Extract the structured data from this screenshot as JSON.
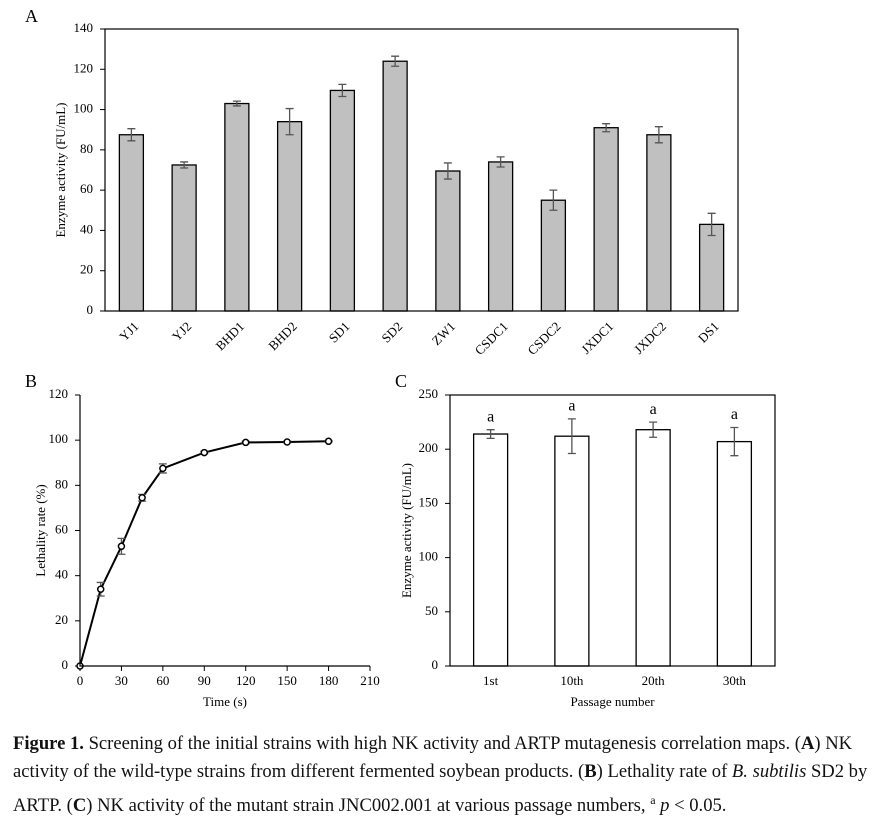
{
  "chart_data": [
    {
      "type": "bar",
      "panel_label": "A",
      "y_label": "Enzyme activity (FU/mL)",
      "categories": [
        "YJ1",
        "YJ2",
        "BHD1",
        "BHD2",
        "SD1",
        "SD2",
        "ZW1",
        "CSDC1",
        "CSDC2",
        "JXDC1",
        "JXDC2",
        "DS1"
      ],
      "values": [
        87.5,
        72.5,
        103,
        94,
        109.5,
        124,
        69.5,
        74,
        55,
        91,
        87.5,
        43
      ],
      "errors": [
        3,
        1.5,
        1.2,
        6.5,
        3,
        2.5,
        4,
        2.5,
        5,
        2,
        4,
        5.5
      ],
      "color": "#c0c0c0",
      "ylim": [
        0,
        140
      ],
      "yticks": [
        0,
        20,
        40,
        60,
        80,
        100,
        120,
        140
      ]
    },
    {
      "type": "line",
      "panel_label": "B",
      "x_label": "Time (s)",
      "y_label": "Lethality rate (%)",
      "x": [
        0,
        15,
        30,
        45,
        60,
        90,
        120,
        150,
        180
      ],
      "values": [
        0,
        34,
        53,
        74.5,
        87.5,
        94.5,
        99,
        99.2,
        99.5
      ],
      "errors": [
        0,
        3,
        3.5,
        1.5,
        2,
        0.5,
        0.5,
        0.3,
        0.3
      ],
      "color": "#000000",
      "xlim": [
        0,
        210
      ],
      "xticks": [
        0,
        30,
        60,
        90,
        120,
        150,
        180,
        210
      ],
      "ylim": [
        0,
        120
      ],
      "yticks": [
        0,
        20,
        40,
        60,
        80,
        100,
        120
      ]
    },
    {
      "type": "bar",
      "panel_label": "C",
      "x_label": "Passage number",
      "y_label": "Enzyme activity (FU/mL)",
      "categories": [
        "1st",
        "10th",
        "20th",
        "30th"
      ],
      "values": [
        214,
        212,
        218,
        207
      ],
      "errors": [
        4,
        16,
        7,
        13
      ],
      "annotations": [
        "a",
        "a",
        "a",
        "a"
      ],
      "color": "#ffffff",
      "ylim": [
        0,
        250
      ],
      "yticks": [
        0,
        50,
        100,
        150,
        200,
        250
      ]
    }
  ],
  "caption": [
    {
      "text": "Figure 1.",
      "style": "bold"
    },
    {
      "text": " Screening of the initial strains with high NK activity and ARTP mutagenesis correlation maps. (",
      "style": "normal"
    },
    {
      "text": "A",
      "style": "bold"
    },
    {
      "text": ") NK activity of the wild-type strains from different fermented soybean products. (",
      "style": "normal"
    },
    {
      "text": "B",
      "style": "bold"
    },
    {
      "text": ") Lethality rate of ",
      "style": "normal"
    },
    {
      "text": "B. subtilis",
      "style": "italic"
    },
    {
      "text": " SD2 by ARTP. (",
      "style": "normal"
    },
    {
      "text": "C",
      "style": "bold"
    },
    {
      "text": ") NK activity of the mutant strain JNC002.001 at various passage numbers, ",
      "style": "normal"
    },
    {
      "text": "a",
      "style": "sup"
    },
    {
      "text": " ",
      "style": "normal"
    },
    {
      "text": "p",
      "style": "italic"
    },
    {
      "text": " < 0.05.",
      "style": "normal"
    }
  ]
}
